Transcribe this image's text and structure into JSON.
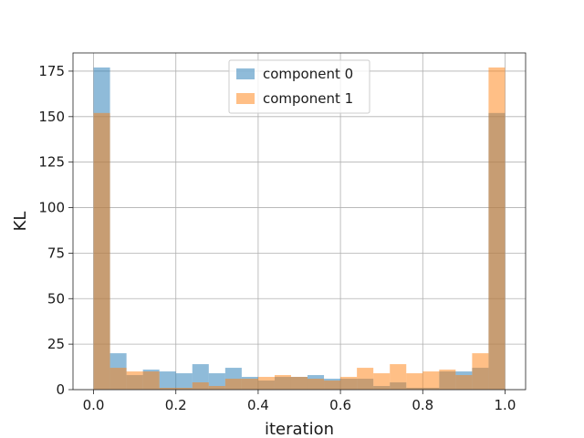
{
  "chart_data": {
    "type": "bar",
    "histogram": true,
    "bin_edges": [
      0.0,
      0.04,
      0.08,
      0.12,
      0.16,
      0.2,
      0.24,
      0.28,
      0.32,
      0.36,
      0.4,
      0.44,
      0.48,
      0.52,
      0.56,
      0.6,
      0.64,
      0.68,
      0.72,
      0.76,
      0.8,
      0.84,
      0.88,
      0.92,
      0.96,
      1.0
    ],
    "series": [
      {
        "name": "component 0",
        "color": "#1f77b4",
        "opacity": 0.5,
        "values": [
          177,
          20,
          8,
          11,
          10,
          9,
          14,
          9,
          12,
          7,
          5,
          7,
          7,
          8,
          6,
          6,
          6,
          2,
          4,
          1,
          1,
          10,
          10,
          12,
          152
        ]
      },
      {
        "name": "component 1",
        "color": "#ff7f0e",
        "opacity": 0.5,
        "values": [
          152,
          12,
          10,
          10,
          1,
          1,
          4,
          2,
          6,
          6,
          7,
          8,
          7,
          6,
          5,
          7,
          12,
          9,
          14,
          9,
          10,
          11,
          8,
          20,
          177
        ]
      }
    ],
    "xlabel": "iteration",
    "ylabel": "KL",
    "xlim": [
      -0.05,
      1.05
    ],
    "ylim": [
      0,
      185
    ],
    "xticks": [
      0.0,
      0.2,
      0.4,
      0.6,
      0.8,
      1.0
    ],
    "xtick_labels": [
      "0.0",
      "0.2",
      "0.4",
      "0.6",
      "0.8",
      "1.0"
    ],
    "yticks": [
      0,
      25,
      50,
      75,
      100,
      125,
      150,
      175
    ],
    "ytick_labels": [
      "0",
      "25",
      "50",
      "75",
      "100",
      "125",
      "150",
      "175"
    ],
    "grid": true,
    "legend": {
      "position": "upper-center",
      "labels": [
        "component 0",
        "component 1"
      ]
    }
  }
}
